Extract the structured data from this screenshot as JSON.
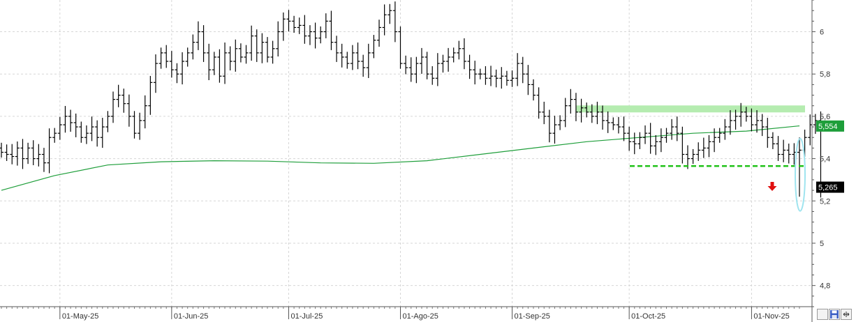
{
  "chart_data": {
    "type": "ohlc",
    "y_range": [
      4.7,
      6.15
    ],
    "y_ticks": [
      4.8,
      5,
      5.2,
      5.4,
      5.6,
      5.8,
      6
    ],
    "y_tick_labels": [
      "4,8",
      "5",
      "5,2",
      "5,4",
      "5,6",
      "5,8",
      "6"
    ],
    "x_labels": [
      "01-May-25",
      "01-Jun-25",
      "01-Jul-25",
      "01-Ago-25",
      "01-Sep-25",
      "01-Oct-25",
      "01-Nov-25"
    ],
    "x_label_bar_index": [
      11,
      32,
      54,
      75,
      96,
      118,
      141
    ],
    "bars_count": 151,
    "close": [
      5.43,
      5.42,
      5.41,
      5.45,
      5.4,
      5.45,
      5.4,
      5.42,
      5.38,
      5.5,
      5.52,
      5.56,
      5.6,
      5.57,
      5.55,
      5.5,
      5.52,
      5.55,
      5.5,
      5.55,
      5.6,
      5.68,
      5.7,
      5.66,
      5.6,
      5.52,
      5.58,
      5.65,
      5.76,
      5.85,
      5.9,
      5.86,
      5.82,
      5.8,
      5.86,
      5.9,
      5.95,
      6,
      5.9,
      5.82,
      5.88,
      5.79,
      5.9,
      5.86,
      5.92,
      5.88,
      5.9,
      5.98,
      5.9,
      5.95,
      5.88,
      5.92,
      6,
      6.06,
      6.05,
      6.02,
      6.03,
      5.98,
      6,
      5.97,
      6,
      6.05,
      5.95,
      5.9,
      5.88,
      5.85,
      5.9,
      5.86,
      5.83,
      5.9,
      5.96,
      6.02,
      6.08,
      6.1,
      6,
      5.85,
      5.83,
      5.8,
      5.85,
      5.88,
      5.8,
      5.78,
      5.85,
      5.86,
      5.88,
      5.9,
      5.92,
      5.86,
      5.82,
      5.8,
      5.8,
      5.78,
      5.79,
      5.78,
      5.79,
      5.77,
      5.78,
      5.85,
      5.8,
      5.75,
      5.7,
      5.62,
      5.6,
      5.52,
      5.56,
      5.58,
      5.65,
      5.68,
      5.62,
      5.64,
      5.62,
      5.6,
      5.62,
      5.58,
      5.57,
      5.56,
      5.55,
      5.52,
      5.48,
      5.47,
      5.5,
      5.52,
      5.46,
      5.48,
      5.5,
      5.52,
      5.55,
      5.52,
      5.42,
      5.4,
      5.42,
      5.44,
      5.45,
      5.48,
      5.5,
      5.52,
      5.55,
      5.58,
      5.6,
      5.62,
      5.6,
      5.56,
      5.58,
      5.55,
      5.5,
      5.47,
      5.42,
      5.44,
      5.42,
      5.43,
      5.44,
      5.5,
      5.56,
      5.58,
      5.265
    ],
    "ma_series": [
      5.25,
      5.32,
      5.37,
      5.385,
      5.39,
      5.388,
      5.38,
      5.378,
      5.39,
      5.42,
      5.45,
      5.48,
      5.5,
      5.52,
      5.53,
      5.555
    ],
    "support_level": 5.365,
    "resistance_level": 5.635,
    "ma_last_value": 5.554,
    "ma_last_label": "5,554",
    "last_price": 5.265,
    "last_price_label": "5,265",
    "colors": {
      "bars": "#000000",
      "ma_line": "#1e9e3a",
      "support": "#22c21a",
      "resistance_band": "#b5ecb0",
      "arrow": "#e01010",
      "highlight": "#9fe4ef",
      "ma_badge": "#1e9e3a",
      "price_badge": "#000000"
    }
  },
  "toolbar": {
    "icons": [
      "checkbox-icon",
      "save-icon",
      "expand-icon"
    ]
  }
}
